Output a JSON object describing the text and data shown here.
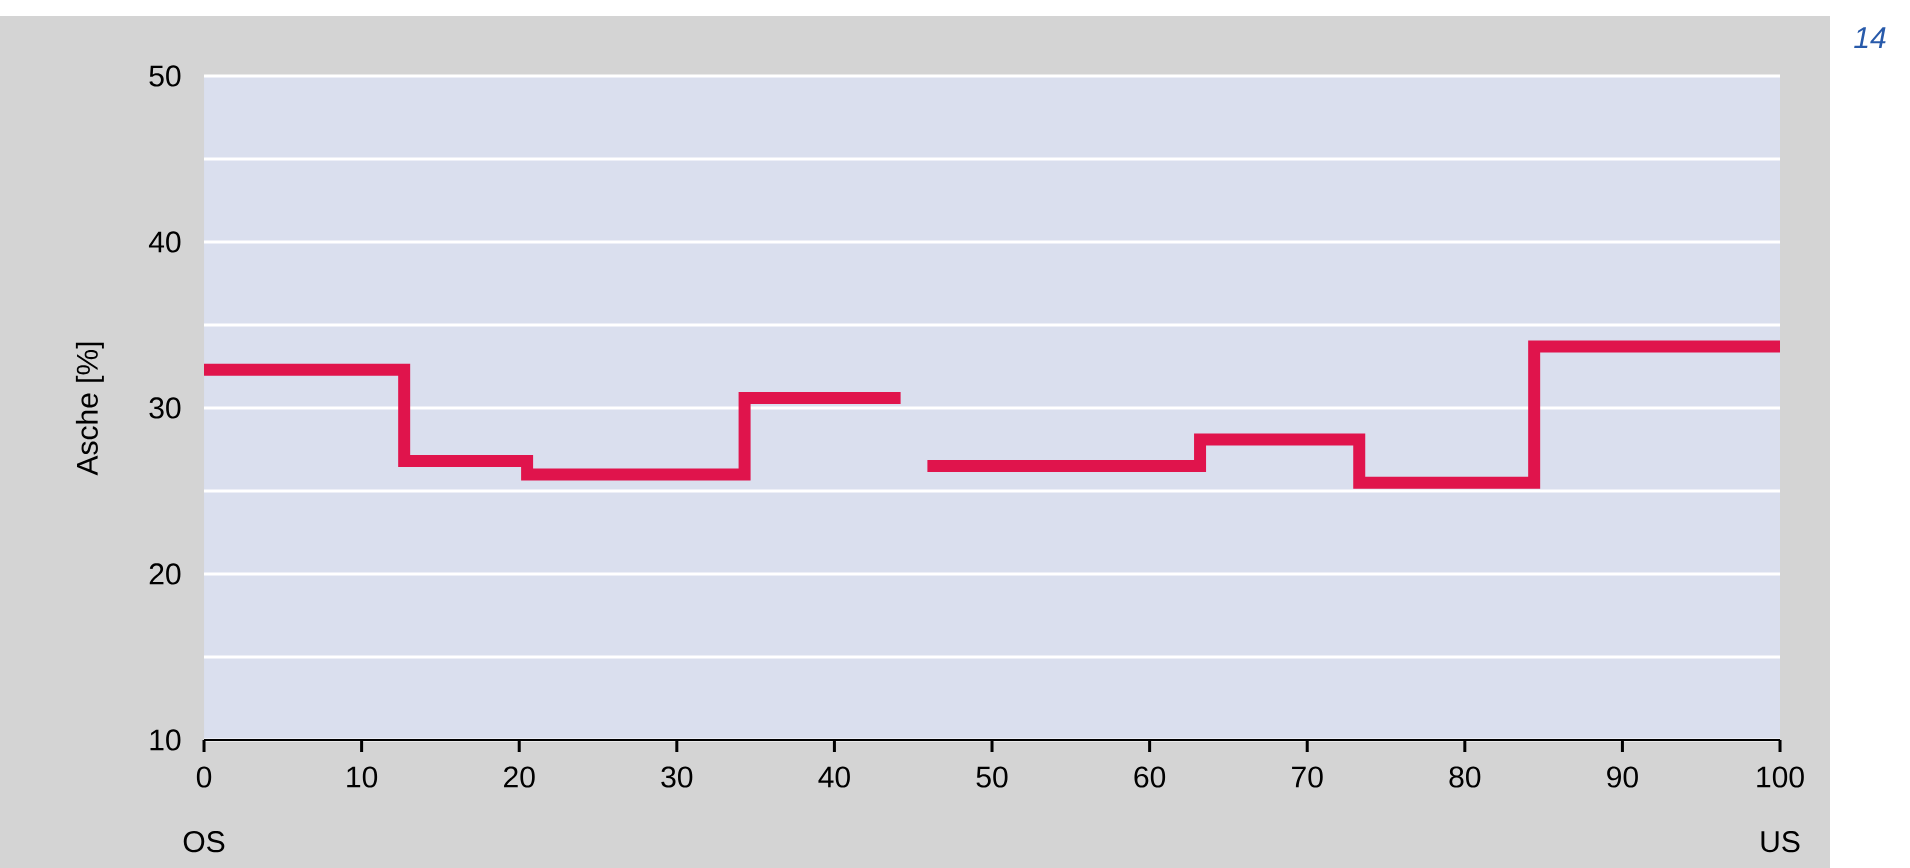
{
  "chart_data": {
    "type": "step",
    "ylabel": "Asche [%]",
    "annotations": [
      "OS",
      "US",
      "14"
    ],
    "x": [
      0,
      12.7,
      20.5,
      34.3,
      44.2,
      45.9,
      63.2,
      73.3,
      84.4,
      100
    ],
    "series": [
      {
        "color": "#e0144c",
        "values": [
          32.3,
          26.8,
          26.0,
          30.6,
          null,
          26.5,
          28.1,
          25.5,
          33.7,
          33.7
        ]
      }
    ],
    "xlim": [
      0,
      100
    ],
    "ylim": [
      10,
      50
    ],
    "xticks": [
      0,
      10,
      20,
      30,
      40,
      50,
      60,
      70,
      80,
      90,
      100
    ],
    "yticks": [
      10,
      {
        "value": 15,
        "label": null
      },
      20,
      {
        "value": 25,
        "label": null
      },
      30,
      {
        "value": 35,
        "label": null
      },
      40,
      {
        "value": 45,
        "label": null
      },
      50
    ],
    "grid": "y"
  }
}
